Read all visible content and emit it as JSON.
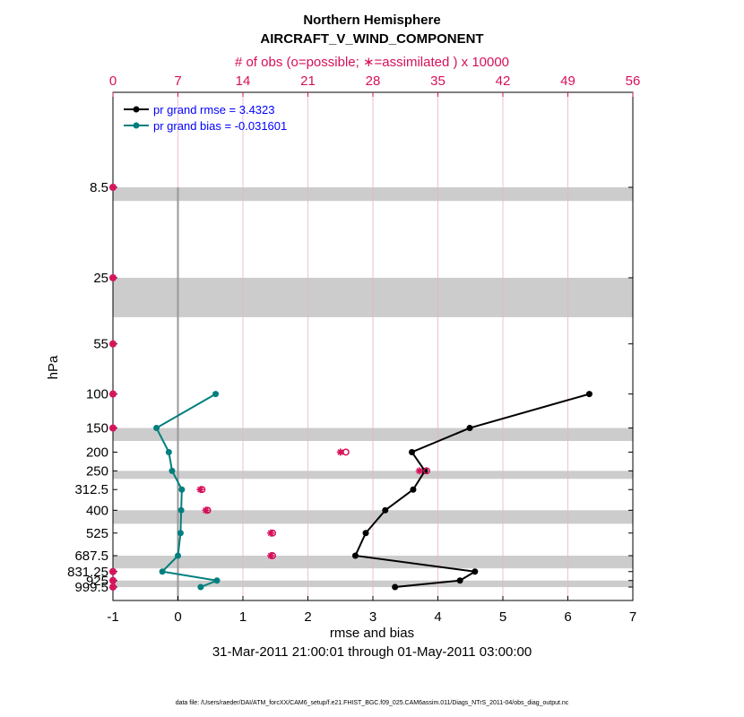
{
  "chart_data": {
    "type": "line",
    "title": "Northern Hemisphere",
    "subtitle": "AIRCRAFT_V_WIND_COMPONENT",
    "top_axis_label": "# of obs (o=possible; ∗=assimilated ) x 10000",
    "xlabel": "rmse and bias",
    "ylabel": "hPa",
    "date_range": "31-Mar-2011 21:00:01 through 01-May-2011 03:00:00",
    "footer": "data file: /Users/raeder/DAI/ATM_forcXX/CAM6_setup/f.e21.FHIST_BGC.f09_025.CAM6assim.011/Diags_NTrS_2011-04/obs_diag_output.nc",
    "xlim": [
      -1,
      7
    ],
    "x_ticks": [
      -1,
      0,
      1,
      2,
      3,
      4,
      5,
      6,
      7
    ],
    "top_lim": [
      0,
      56
    ],
    "top_ticks": [
      0,
      7,
      14,
      21,
      28,
      35,
      42,
      49,
      56
    ],
    "y_scale": "log",
    "y_reversed": true,
    "levels": [
      8.5,
      25,
      55,
      100,
      150,
      200,
      250,
      312.5,
      400,
      525,
      687.5,
      831.25,
      925,
      999.5
    ],
    "level_labels": [
      "8.5",
      "25",
      "55",
      "100",
      "150",
      "200",
      "250",
      "312.5",
      "400",
      "525",
      "687.5",
      "831.25",
      "925",
      "999.5"
    ],
    "grid": "vertical at top-axis ticks",
    "legend_position": "top-left",
    "colors": {
      "rmse": "#000000",
      "bias": "#007f7f",
      "obs": "#d6105a",
      "band": "#cccccc",
      "zero_line": "#999999"
    },
    "series": [
      {
        "name": "pr grand rmse = 3.4323",
        "key": "rmse",
        "points": [
          [
            6.33,
            100
          ],
          [
            4.49,
            150
          ],
          [
            3.6,
            200
          ],
          [
            3.8,
            250
          ],
          [
            3.62,
            312.5
          ],
          [
            3.19,
            400
          ],
          [
            2.89,
            525
          ],
          [
            2.73,
            687.5
          ],
          [
            4.57,
            831.25
          ],
          [
            4.34,
            925
          ],
          [
            3.34,
            999.5
          ]
        ]
      },
      {
        "name": "pr grand bias = -0.031601",
        "key": "bias",
        "points": [
          [
            0.58,
            100
          ],
          [
            -0.33,
            150
          ],
          [
            -0.14,
            200
          ],
          [
            -0.09,
            250
          ],
          [
            0.06,
            312.5
          ],
          [
            0.05,
            400
          ],
          [
            0.04,
            525
          ],
          [
            0.0,
            687.5
          ],
          [
            -0.24,
            831.25
          ],
          [
            0.6,
            925
          ],
          [
            0.35,
            999.5
          ]
        ]
      }
    ],
    "obs_assimilated": [
      [
        0,
        8.5
      ],
      [
        0,
        25
      ],
      [
        0,
        55
      ],
      [
        0,
        100
      ],
      [
        0,
        150
      ],
      [
        24.5,
        200
      ],
      [
        33.0,
        250
      ],
      [
        9.4,
        312.5
      ],
      [
        10.0,
        400
      ],
      [
        17.0,
        525
      ],
      [
        17.0,
        687.5
      ],
      [
        0,
        831.25
      ],
      [
        0,
        925
      ],
      [
        0,
        999.5
      ]
    ],
    "obs_possible": [
      [
        0,
        8.5
      ],
      [
        0,
        25
      ],
      [
        0,
        55
      ],
      [
        0,
        100
      ],
      [
        0,
        150
      ],
      [
        24.9,
        200
      ],
      [
        33.6,
        250
      ],
      [
        9.4,
        312.5
      ],
      [
        10.0,
        400
      ],
      [
        17.0,
        525
      ],
      [
        17.0,
        687.5
      ],
      [
        0,
        831.25
      ],
      [
        0,
        925
      ],
      [
        0,
        999.5
      ]
    ],
    "bands": [
      [
        8.5,
        10
      ],
      [
        25,
        40
      ],
      [
        150,
        175
      ],
      [
        250,
        275
      ],
      [
        400,
        470
      ],
      [
        687.5,
        800
      ],
      [
        925,
        1000
      ]
    ]
  }
}
